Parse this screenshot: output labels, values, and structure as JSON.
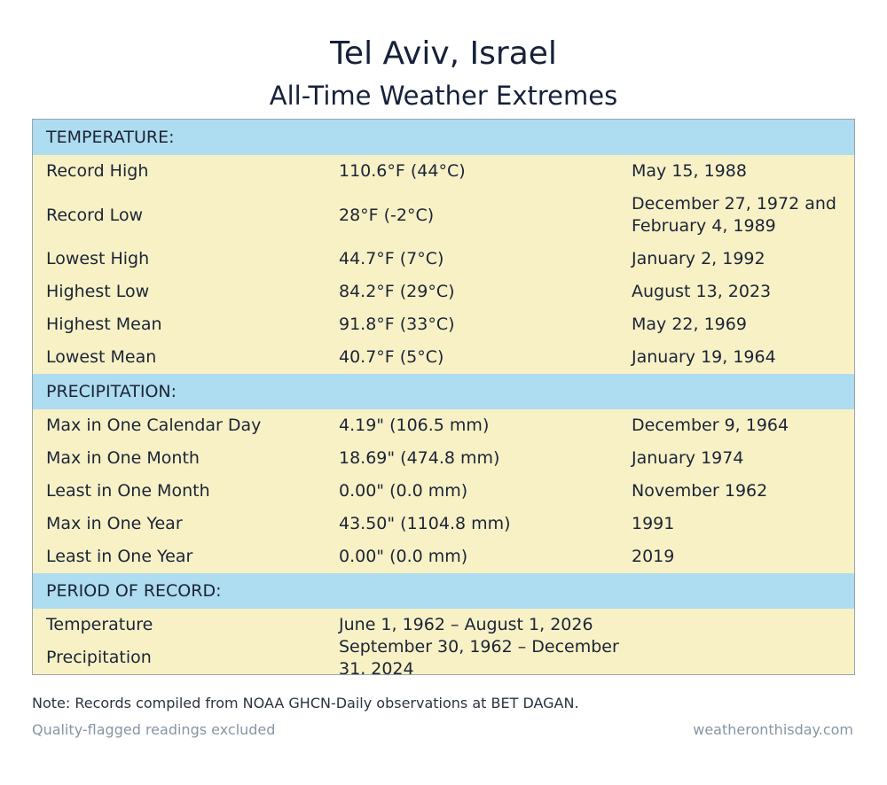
{
  "header": {
    "title": "Tel Aviv, Israel",
    "subtitle": "All-Time Weather Extremes"
  },
  "sections": [
    {
      "label": "TEMPERATURE:",
      "rows": [
        {
          "name": "Record High",
          "value": "110.6°F (44°C)",
          "date": "May 15, 1988"
        },
        {
          "name": "Record Low",
          "value": "28°F (-2°C)",
          "date": "December 27, 1972 and February 4, 1989"
        },
        {
          "name": "Lowest High",
          "value": "44.7°F (7°C)",
          "date": "January 2, 1992"
        },
        {
          "name": "Highest Low",
          "value": "84.2°F (29°C)",
          "date": "August 13, 2023"
        },
        {
          "name": "Highest Mean",
          "value": "91.8°F (33°C)",
          "date": "May 22, 1969"
        },
        {
          "name": "Lowest Mean",
          "value": "40.7°F (5°C)",
          "date": "January 19, 1964"
        }
      ]
    },
    {
      "label": "PRECIPITATION:",
      "rows": [
        {
          "name": "Max in One Calendar Day",
          "value": "4.19\" (106.5 mm)",
          "date": "December 9, 1964"
        },
        {
          "name": "Max in One Month",
          "value": "18.69\" (474.8 mm)",
          "date": "January 1974"
        },
        {
          "name": "Least in One Month",
          "value": "0.00\" (0.0 mm)",
          "date": "November 1962"
        },
        {
          "name": "Max in One Year",
          "value": "43.50\" (1104.8 mm)",
          "date": "1991"
        },
        {
          "name": "Least in One Year",
          "value": "0.00\" (0.0 mm)",
          "date": "2019"
        }
      ]
    },
    {
      "label": "PERIOD OF RECORD:",
      "rows": [
        {
          "name": "Temperature",
          "value": "June 1, 1962 – August 1, 2026",
          "date": ""
        },
        {
          "name": "Precipitation",
          "value": "September 30, 1962 – December 31, 2024",
          "date": ""
        }
      ]
    }
  ],
  "footer": {
    "note": "Note: Records compiled from NOAA GHCN-Daily observations at BET DAGAN.",
    "left": "Quality-flagged readings excluded",
    "right": "weatheronthisday.com"
  },
  "colors": {
    "section_bg": "#aedcf0",
    "row_bg": "#f8f1c6",
    "border": "#9aa3ab"
  }
}
